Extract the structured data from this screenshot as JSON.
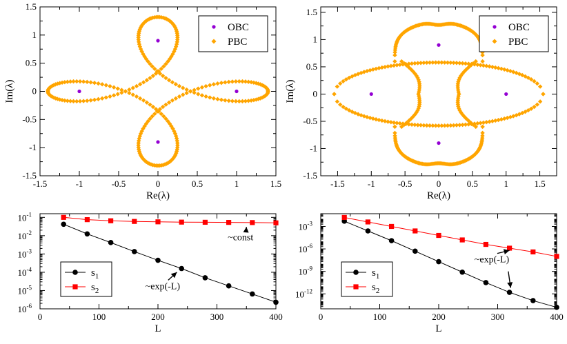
{
  "chart_data": [
    {
      "type": "scatter",
      "id": "p1",
      "xlabel": "Re(λ)",
      "ylabel": "Im(λ)",
      "xlim": [
        -1.5,
        1.5
      ],
      "ylim": [
        -1.5,
        1.5
      ],
      "xticks": [
        "-1.5",
        "-1",
        "-0.5",
        "0",
        "0.5",
        "1",
        "1.5"
      ],
      "yticks": [
        "-1.5",
        "-1",
        "-0.5",
        "0",
        "0.5",
        "1",
        "1.5"
      ],
      "legend": {
        "position": "top-right",
        "entries": [
          "OBC",
          "PBC"
        ]
      },
      "series": [
        {
          "name": "OBC",
          "color": "#9400d3",
          "points": [
            [
              -1,
              0
            ],
            [
              1,
              0
            ],
            [
              0,
              0.9
            ],
            [
              0,
              -0.9
            ]
          ]
        },
        {
          "name": "PBC",
          "color": "#ffa500",
          "curve": "four-leaf loop",
          "x_extent": [
            -1.4,
            1.4
          ],
          "y_extent": [
            -1.32,
            1.32
          ]
        }
      ]
    },
    {
      "type": "scatter",
      "id": "p2",
      "xlabel": "Re(λ)",
      "ylabel": "Im(λ)",
      "xlim": [
        -1.75,
        1.75
      ],
      "ylim": [
        -1.5,
        1.6
      ],
      "xticks": [
        "-1.5",
        "-1",
        "-0.5",
        "0",
        "0.5",
        "1",
        "1.5"
      ],
      "yticks": [
        "-1.5",
        "-1",
        "-0.5",
        "0",
        "0.5",
        "1",
        "1.5"
      ],
      "legend": {
        "position": "top-right",
        "entries": [
          "OBC",
          "PBC"
        ]
      },
      "series": [
        {
          "name": "OBC",
          "color": "#9400d3",
          "points": [
            [
              -1,
              0
            ],
            [
              1,
              0
            ],
            [
              0,
              0.9
            ],
            [
              0,
              -0.9
            ]
          ]
        },
        {
          "name": "PBC",
          "color": "#ffa500",
          "curve": "lens plus lobes",
          "x_extent": [
            -1.55,
            1.55
          ],
          "y_extent": [
            -1.32,
            1.32
          ]
        }
      ]
    },
    {
      "type": "line",
      "id": "p3",
      "yscale": "log",
      "xlabel": "L",
      "xlim": [
        0,
        400
      ],
      "ylim_exp": [
        -6,
        -0.8
      ],
      "xticks": [
        "0",
        "100",
        "200",
        "300",
        "400"
      ],
      "yticks": [
        {
          "exp": -6,
          "label": "10"
        },
        {
          "exp": -5,
          "label": "10"
        },
        {
          "exp": -4,
          "label": "10"
        },
        {
          "exp": -3,
          "label": "10"
        },
        {
          "exp": -2,
          "label": "10"
        },
        {
          "exp": -1,
          "label": "10"
        }
      ],
      "x": [
        40,
        80,
        120,
        160,
        200,
        240,
        280,
        320,
        360,
        400
      ],
      "series": [
        {
          "name": "s",
          "sub": "1",
          "color": "#000000",
          "values": [
            0.042,
            0.0125,
            0.0042,
            0.00135,
            0.00045,
            0.00016,
            5e-05,
            1.8e-05,
            6.5e-06,
            2.3e-06
          ]
        },
        {
          "name": "s",
          "sub": "2",
          "color": "#ff0000",
          "values": [
            0.1,
            0.075,
            0.065,
            0.06,
            0.057,
            0.055,
            0.054,
            0.053,
            0.052,
            0.05
          ]
        }
      ],
      "legend": {
        "position": "bottom-left"
      },
      "annotations": [
        {
          "text": "~const",
          "at": [
            340,
            0.0055
          ],
          "arrow_to": [
            350,
            0.03
          ]
        },
        {
          "text": "~exp(-L)",
          "at": [
            208,
            1.2e-05
          ],
          "arrow_to": [
            232,
            0.0001
          ]
        }
      ]
    },
    {
      "type": "line",
      "id": "p4",
      "yscale": "log",
      "xlabel": "L",
      "xlim": [
        0,
        400
      ],
      "ylim_exp": [
        -14,
        -1.3
      ],
      "xticks": [
        "0",
        "100",
        "200",
        "300",
        "400"
      ],
      "yticks": [
        {
          "exp": -12,
          "label": "10"
        },
        {
          "exp": -9,
          "label": "10"
        },
        {
          "exp": -6,
          "label": "10"
        },
        {
          "exp": -3,
          "label": "10"
        }
      ],
      "x": [
        40,
        80,
        120,
        160,
        200,
        240,
        280,
        320,
        360,
        400
      ],
      "series": [
        {
          "name": "s",
          "sub": "1",
          "color": "#000000",
          "exps": [
            -2.3,
            -3.6,
            -4.9,
            -6.3,
            -7.7,
            -9.1,
            -10.5,
            -11.8,
            -12.9,
            -13.8
          ]
        },
        {
          "name": "s",
          "sub": "2",
          "color": "#ff0000",
          "exps": [
            -1.8,
            -2.4,
            -3.0,
            -3.6,
            -4.2,
            -4.8,
            -5.4,
            -5.9,
            -6.4,
            -7.0
          ]
        }
      ],
      "legend": {
        "position": "bottom-left"
      },
      "annotations": [
        {
          "text": "~exp(-L)",
          "at": [
            290,
            -7.8
          ],
          "arrow_to": [
            320,
            -6.2
          ]
        },
        {
          "arrow_only": true,
          "from": [
            318,
            -9.0
          ],
          "arrow_to": [
            322,
            -11.2
          ]
        }
      ]
    }
  ]
}
